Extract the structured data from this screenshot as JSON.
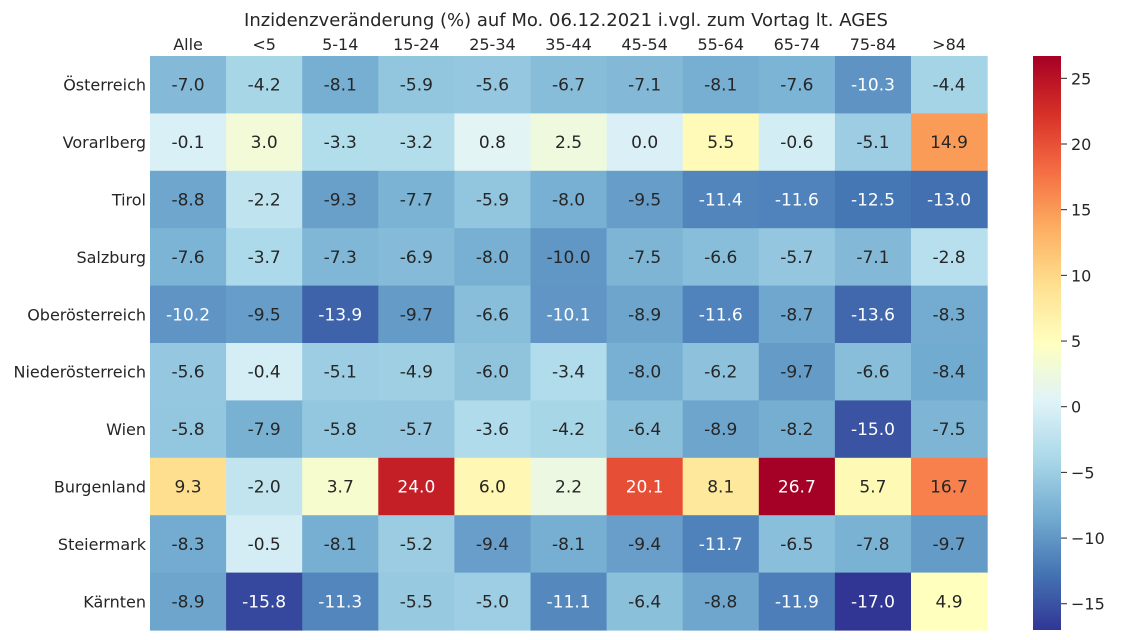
{
  "chart_data": {
    "type": "heatmap",
    "title": "Inzidenzveränderung (%) auf Mo. 06.12.2021 i.vgl. zum Vortag lt. AGES",
    "columns": [
      "Alle",
      "<5",
      "5-14",
      "15-24",
      "25-34",
      "35-44",
      "45-54",
      "55-64",
      "65-74",
      "75-84",
      ">84"
    ],
    "rows": [
      "Österreich",
      "Vorarlberg",
      "Tirol",
      "Salzburg",
      "Oberösterreich",
      "Niederösterreich",
      "Wien",
      "Burgenland",
      "Steiermark",
      "Kärnten"
    ],
    "values": [
      [
        -7.0,
        -4.2,
        -8.1,
        -5.9,
        -5.6,
        -6.7,
        -7.1,
        -8.1,
        -7.6,
        -10.3,
        -4.4
      ],
      [
        -0.1,
        3.0,
        -3.3,
        -3.2,
        0.8,
        2.5,
        0.0,
        5.5,
        -0.6,
        -5.1,
        14.9
      ],
      [
        -8.8,
        -2.2,
        -9.3,
        -7.7,
        -5.9,
        -8.0,
        -9.5,
        -11.4,
        -11.6,
        -12.5,
        -13.0
      ],
      [
        -7.6,
        -3.7,
        -7.3,
        -6.9,
        -8.0,
        -10.0,
        -7.5,
        -6.6,
        -5.7,
        -7.1,
        -2.8
      ],
      [
        -10.2,
        -9.5,
        -13.9,
        -9.7,
        -6.6,
        -10.1,
        -8.9,
        -11.6,
        -8.7,
        -13.6,
        -8.3
      ],
      [
        -5.6,
        -0.4,
        -5.1,
        -4.9,
        -6.0,
        -3.4,
        -8.0,
        -6.2,
        -9.7,
        -6.6,
        -8.4
      ],
      [
        -5.8,
        -7.9,
        -5.8,
        -5.7,
        -3.6,
        -4.2,
        -6.4,
        -8.9,
        -8.2,
        -15.0,
        -7.5
      ],
      [
        9.3,
        -2.0,
        3.7,
        24.0,
        6.0,
        2.2,
        20.1,
        8.1,
        26.7,
        5.7,
        16.7
      ],
      [
        -8.3,
        -0.5,
        -8.1,
        -5.2,
        -9.4,
        -8.1,
        -9.4,
        -11.7,
        -6.5,
        -7.8,
        -9.7
      ],
      [
        -8.9,
        -15.8,
        -11.3,
        -5.5,
        -5.0,
        -11.1,
        -6.4,
        -8.8,
        -11.9,
        -17.0,
        4.9
      ]
    ],
    "colormap": "RdYlBu_r",
    "vmin": -17.0,
    "vmax": 26.7,
    "colorbar_ticks": [
      -15,
      -10,
      -5,
      0,
      5,
      10,
      15,
      20,
      25
    ],
    "annotation_format": "one decimal",
    "xaxis_position": "top"
  }
}
